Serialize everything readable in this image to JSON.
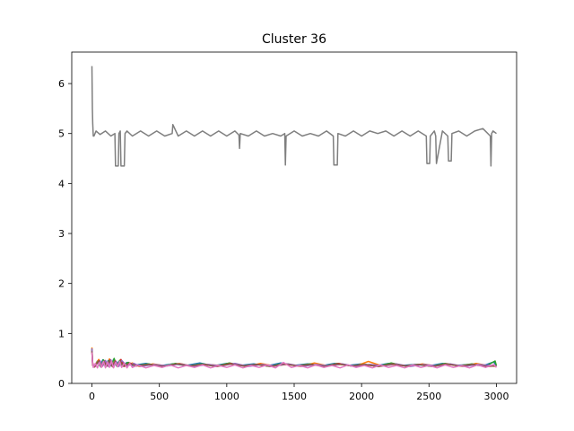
{
  "chart_data": {
    "type": "line",
    "title": "Cluster 36",
    "xlabel": "",
    "ylabel": "",
    "xlim": [
      -150,
      3150
    ],
    "ylim": [
      0,
      6.63
    ],
    "xticks": [
      0,
      500,
      1000,
      1500,
      2000,
      2500,
      3000
    ],
    "xtick_labels": [
      "0",
      "500",
      "1000",
      "1500",
      "2000",
      "2500",
      "3000"
    ],
    "yticks": [
      0,
      1,
      2,
      3,
      4,
      5,
      6
    ],
    "ytick_labels": [
      "0",
      "1",
      "2",
      "3",
      "4",
      "5",
      "6"
    ],
    "grid": false,
    "legend": "none",
    "series": [
      {
        "color": "#7f7f7f",
        "x": [
          0,
          3,
          6,
          10,
          15,
          30,
          60,
          100,
          140,
          170,
          175,
          195,
          200,
          210,
          215,
          240,
          245,
          260,
          300,
          360,
          420,
          480,
          540,
          595,
          600,
          640,
          700,
          760,
          820,
          880,
          940,
          1000,
          1060,
          1090,
          1095,
          1100,
          1160,
          1220,
          1280,
          1340,
          1400,
          1430,
          1435,
          1440,
          1500,
          1560,
          1620,
          1680,
          1740,
          1790,
          1795,
          1820,
          1825,
          1880,
          1940,
          2000,
          2060,
          2120,
          2180,
          2240,
          2300,
          2360,
          2420,
          2480,
          2485,
          2505,
          2510,
          2540,
          2550,
          2555,
          2600,
          2640,
          2645,
          2665,
          2670,
          2720,
          2780,
          2840,
          2900,
          2955,
          2960,
          2965,
          2975,
          3000
        ],
        "y": [
          6.35,
          5.5,
          5.2,
          4.95,
          4.95,
          5.05,
          4.98,
          5.05,
          4.95,
          5.0,
          4.35,
          4.35,
          5.0,
          5.05,
          4.35,
          4.35,
          5.0,
          5.05,
          4.95,
          5.05,
          4.95,
          5.05,
          4.95,
          5.0,
          5.18,
          4.95,
          5.05,
          4.95,
          5.05,
          4.95,
          5.05,
          4.95,
          5.05,
          4.97,
          4.7,
          5.0,
          4.95,
          5.05,
          4.95,
          5.0,
          4.95,
          5.0,
          4.37,
          4.95,
          5.05,
          4.95,
          5.0,
          4.95,
          5.05,
          4.95,
          4.37,
          4.37,
          5.0,
          4.95,
          5.05,
          4.95,
          5.05,
          5.0,
          5.05,
          4.95,
          5.05,
          4.95,
          5.05,
          4.95,
          4.4,
          4.4,
          4.95,
          5.05,
          4.95,
          4.4,
          5.05,
          4.95,
          4.45,
          4.45,
          5.0,
          5.05,
          4.95,
          5.05,
          5.1,
          4.95,
          4.35,
          5.0,
          5.05,
          5.0
        ]
      },
      {
        "color": "#1f77b4",
        "x": [
          0,
          5,
          15,
          40,
          60,
          80,
          100,
          120,
          140,
          160,
          180,
          200,
          230,
          260,
          300,
          400,
          500,
          600,
          700,
          800,
          900,
          1000,
          1100,
          1200,
          1300,
          1400,
          1500,
          1600,
          1700,
          1800,
          1900,
          2000,
          2100,
          2200,
          2300,
          2400,
          2500,
          2600,
          2700,
          2800,
          2900,
          2980,
          3000
        ],
        "y": [
          0.7,
          0.4,
          0.33,
          0.45,
          0.35,
          0.47,
          0.34,
          0.46,
          0.35,
          0.48,
          0.36,
          0.44,
          0.36,
          0.42,
          0.36,
          0.4,
          0.35,
          0.39,
          0.36,
          0.41,
          0.35,
          0.4,
          0.36,
          0.39,
          0.35,
          0.41,
          0.36,
          0.39,
          0.35,
          0.4,
          0.36,
          0.39,
          0.35,
          0.4,
          0.36,
          0.38,
          0.35,
          0.4,
          0.36,
          0.38,
          0.35,
          0.43,
          0.36
        ]
      },
      {
        "color": "#ff7f0e",
        "x": [
          0,
          5,
          15,
          50,
          70,
          90,
          110,
          130,
          150,
          170,
          190,
          210,
          250,
          300,
          350,
          450,
          550,
          650,
          750,
          850,
          950,
          1050,
          1150,
          1250,
          1350,
          1450,
          1550,
          1650,
          1750,
          1850,
          1950,
          2050,
          2150,
          2250,
          2350,
          2450,
          2550,
          2650,
          2750,
          2850,
          2950,
          3000
        ],
        "y": [
          0.72,
          0.42,
          0.33,
          0.48,
          0.34,
          0.46,
          0.35,
          0.49,
          0.34,
          0.45,
          0.36,
          0.47,
          0.35,
          0.41,
          0.34,
          0.39,
          0.35,
          0.4,
          0.34,
          0.38,
          0.36,
          0.39,
          0.34,
          0.4,
          0.35,
          0.38,
          0.34,
          0.41,
          0.35,
          0.38,
          0.34,
          0.44,
          0.35,
          0.38,
          0.34,
          0.39,
          0.35,
          0.38,
          0.34,
          0.4,
          0.35,
          0.34
        ]
      },
      {
        "color": "#2ca02c",
        "x": [
          0,
          5,
          20,
          45,
          65,
          85,
          105,
          125,
          145,
          165,
          185,
          205,
          225,
          270,
          320,
          420,
          520,
          620,
          720,
          820,
          920,
          1020,
          1120,
          1220,
          1320,
          1420,
          1520,
          1620,
          1720,
          1820,
          1920,
          2020,
          2120,
          2220,
          2320,
          2420,
          2520,
          2620,
          2720,
          2820,
          2920,
          2990,
          3000
        ],
        "y": [
          0.68,
          0.38,
          0.34,
          0.44,
          0.33,
          0.47,
          0.34,
          0.45,
          0.36,
          0.5,
          0.34,
          0.46,
          0.36,
          0.42,
          0.35,
          0.39,
          0.34,
          0.4,
          0.35,
          0.39,
          0.34,
          0.41,
          0.35,
          0.38,
          0.34,
          0.4,
          0.35,
          0.39,
          0.34,
          0.4,
          0.35,
          0.38,
          0.34,
          0.41,
          0.35,
          0.38,
          0.34,
          0.4,
          0.35,
          0.39,
          0.34,
          0.45,
          0.35
        ]
      },
      {
        "color": "#d62728",
        "x": [
          0,
          5,
          20,
          55,
          75,
          95,
          115,
          135,
          155,
          175,
          195,
          215,
          240,
          280,
          330,
          430,
          530,
          630,
          730,
          830,
          930,
          1030,
          1130,
          1230,
          1330,
          1430,
          1530,
          1630,
          1730,
          1830,
          1930,
          2030,
          2130,
          2230,
          2330,
          2430,
          2530,
          2630,
          2730,
          2830,
          2930,
          3000
        ],
        "y": [
          0.66,
          0.36,
          0.33,
          0.46,
          0.34,
          0.44,
          0.35,
          0.47,
          0.33,
          0.45,
          0.35,
          0.48,
          0.34,
          0.41,
          0.35,
          0.38,
          0.34,
          0.39,
          0.35,
          0.38,
          0.34,
          0.4,
          0.35,
          0.38,
          0.34,
          0.39,
          0.35,
          0.38,
          0.34,
          0.4,
          0.35,
          0.37,
          0.34,
          0.39,
          0.35,
          0.38,
          0.34,
          0.39,
          0.35,
          0.38,
          0.34,
          0.35
        ]
      },
      {
        "color": "#9467bd",
        "x": [
          0,
          5,
          15,
          60,
          80,
          100,
          120,
          140,
          160,
          180,
          200,
          220,
          260,
          310,
          360,
          460,
          560,
          660,
          760,
          860,
          960,
          1060,
          1160,
          1260,
          1360,
          1460,
          1560,
          1660,
          1760,
          1860,
          1960,
          2060,
          2160,
          2260,
          2360,
          2460,
          2560,
          2660,
          2760,
          2860,
          2960,
          3000
        ],
        "y": [
          0.7,
          0.4,
          0.34,
          0.45,
          0.35,
          0.46,
          0.34,
          0.47,
          0.35,
          0.44,
          0.34,
          0.46,
          0.35,
          0.4,
          0.34,
          0.38,
          0.35,
          0.39,
          0.34,
          0.38,
          0.35,
          0.4,
          0.34,
          0.38,
          0.35,
          0.39,
          0.34,
          0.38,
          0.35,
          0.39,
          0.34,
          0.38,
          0.35,
          0.39,
          0.34,
          0.38,
          0.35,
          0.39,
          0.34,
          0.38,
          0.36,
          0.35
        ]
      },
      {
        "color": "#8c564b",
        "x": [
          0,
          5,
          20,
          50,
          70,
          90,
          110,
          130,
          150,
          170,
          190,
          210,
          235,
          275,
          325,
          425,
          525,
          625,
          725,
          825,
          925,
          1025,
          1125,
          1225,
          1325,
          1425,
          1525,
          1625,
          1725,
          1825,
          1925,
          2025,
          2125,
          2225,
          2325,
          2425,
          2525,
          2625,
          2725,
          2825,
          2925,
          3000
        ],
        "y": [
          0.64,
          0.37,
          0.33,
          0.45,
          0.34,
          0.43,
          0.35,
          0.46,
          0.34,
          0.44,
          0.35,
          0.45,
          0.34,
          0.4,
          0.35,
          0.38,
          0.34,
          0.39,
          0.35,
          0.38,
          0.34,
          0.39,
          0.35,
          0.38,
          0.34,
          0.39,
          0.35,
          0.38,
          0.34,
          0.39,
          0.35,
          0.38,
          0.34,
          0.39,
          0.35,
          0.38,
          0.34,
          0.39,
          0.35,
          0.38,
          0.34,
          0.35
        ]
      },
      {
        "color": "#e377c2",
        "x": [
          0,
          4,
          10,
          25,
          40,
          55,
          70,
          85,
          100,
          115,
          130,
          145,
          160,
          175,
          190,
          205,
          220,
          240,
          260,
          280,
          300,
          340,
          400,
          460,
          520,
          580,
          640,
          700,
          760,
          820,
          880,
          940,
          1000,
          1060,
          1120,
          1180,
          1240,
          1300,
          1360,
          1420,
          1480,
          1540,
          1600,
          1660,
          1720,
          1780,
          1840,
          1900,
          1960,
          2020,
          2080,
          2140,
          2200,
          2260,
          2320,
          2380,
          2440,
          2500,
          2560,
          2620,
          2680,
          2740,
          2800,
          2860,
          2920,
          2980,
          3000
        ],
        "y": [
          0.62,
          0.45,
          0.32,
          0.4,
          0.31,
          0.42,
          0.32,
          0.44,
          0.31,
          0.43,
          0.32,
          0.45,
          0.31,
          0.42,
          0.33,
          0.44,
          0.32,
          0.41,
          0.31,
          0.4,
          0.32,
          0.37,
          0.31,
          0.36,
          0.32,
          0.37,
          0.31,
          0.36,
          0.32,
          0.37,
          0.31,
          0.36,
          0.32,
          0.37,
          0.31,
          0.36,
          0.32,
          0.37,
          0.31,
          0.42,
          0.32,
          0.36,
          0.31,
          0.37,
          0.32,
          0.36,
          0.31,
          0.37,
          0.32,
          0.36,
          0.31,
          0.37,
          0.32,
          0.36,
          0.31,
          0.37,
          0.32,
          0.36,
          0.31,
          0.37,
          0.32,
          0.36,
          0.31,
          0.37,
          0.32,
          0.38,
          0.32
        ]
      }
    ]
  }
}
